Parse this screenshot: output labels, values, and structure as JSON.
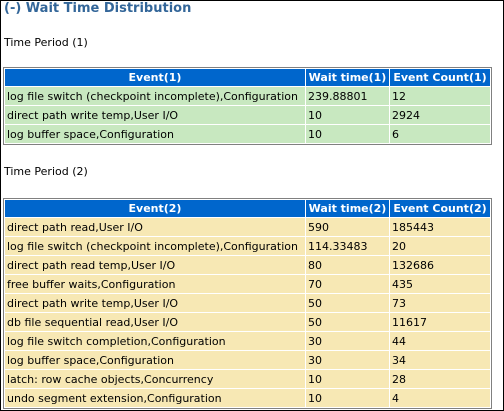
{
  "section": {
    "title": "(-) Wait Time Distribution"
  },
  "period1": {
    "label": "Time Period (1)",
    "headers": [
      "Event(1)",
      "Wait time(1)",
      "Event Count(1)"
    ],
    "rows": [
      [
        "log file switch (checkpoint incomplete),Configuration",
        "239.88801",
        "12"
      ],
      [
        "direct path write temp,User I/O",
        "10",
        "2924"
      ],
      [
        "log buffer space,Configuration",
        "10",
        "6"
      ]
    ]
  },
  "period2": {
    "label": "Time Period (2)",
    "headers": [
      "Event(2)",
      "Wait time(2)",
      "Event Count(2)"
    ],
    "rows": [
      [
        "direct path read,User I/O",
        "590",
        "185443"
      ],
      [
        "log file switch (checkpoint incomplete),Configuration",
        "114.33483",
        "20"
      ],
      [
        "direct path read temp,User I/O",
        "80",
        "132686"
      ],
      [
        "free buffer waits,Configuration",
        "70",
        "435"
      ],
      [
        "direct path write temp,User I/O",
        "50",
        "73"
      ],
      [
        "db file sequential read,User I/O",
        "50",
        "11617"
      ],
      [
        "log file switch completion,Configuration",
        "30",
        "44"
      ],
      [
        "log buffer space,Configuration",
        "30",
        "34"
      ],
      [
        "latch: row cache objects,Concurrency",
        "10",
        "28"
      ],
      [
        "undo segment extension,Configuration",
        "10",
        "4"
      ]
    ]
  },
  "colors": {
    "title": "#336699",
    "header_bg": "#0066cc",
    "header_text": "#ffffff",
    "period1_row_bg": "#c8e8c0",
    "period2_row_bg": "#f7e8b4"
  }
}
